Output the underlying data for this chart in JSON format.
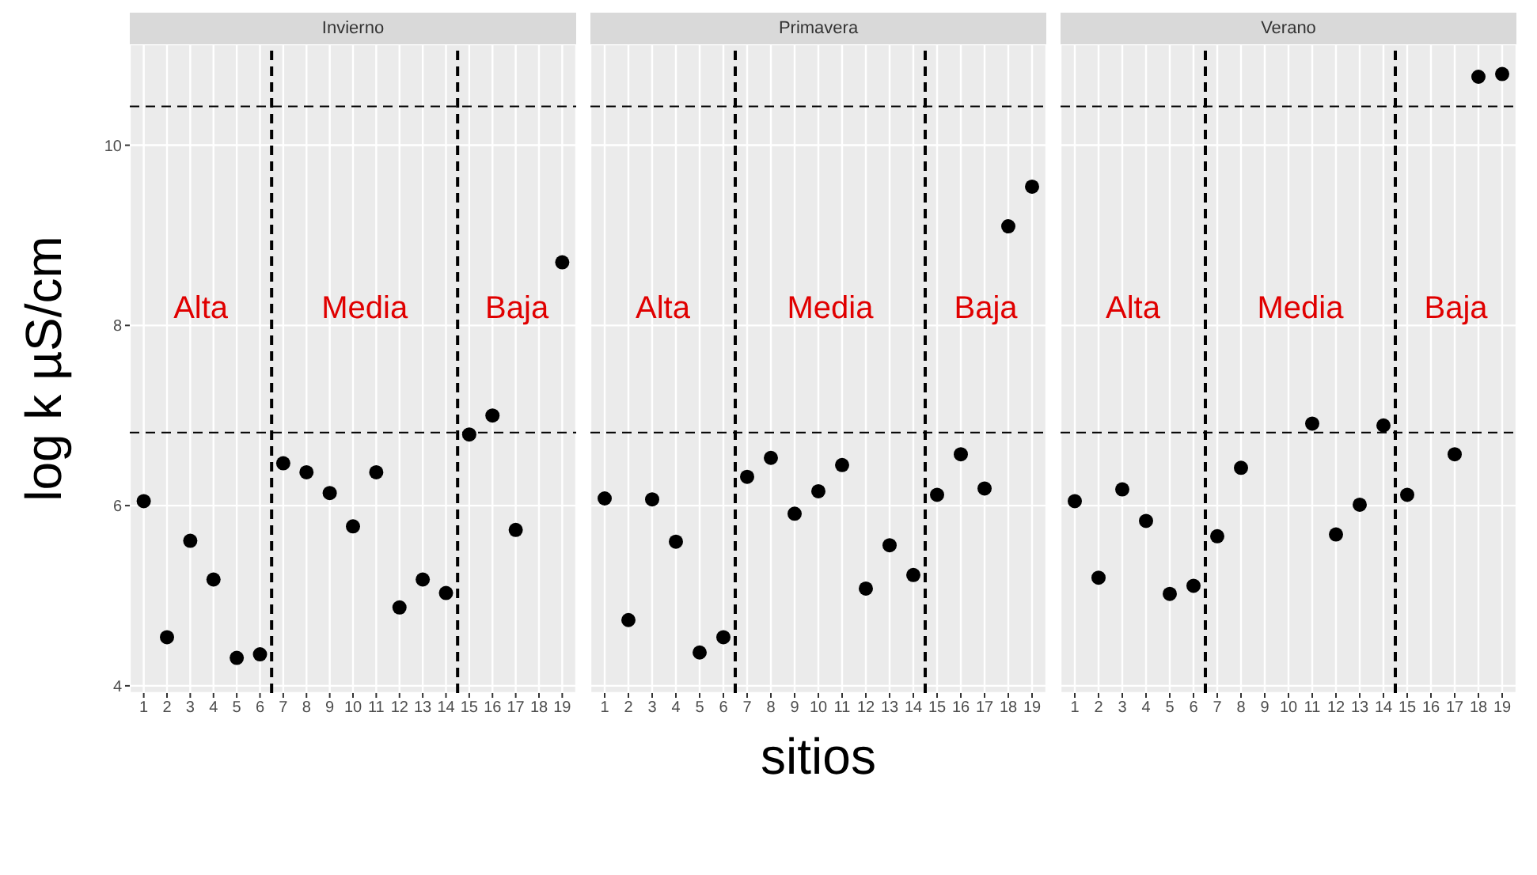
{
  "chart_data": [
    {
      "type": "scatter",
      "title": "Invierno",
      "ylabel": "log k µS/cm",
      "x": [
        1,
        2,
        3,
        4,
        5,
        6,
        7,
        8,
        9,
        10,
        11,
        12,
        13,
        14,
        15,
        16,
        17,
        18,
        19
      ],
      "series": [
        {
          "color": "#000000",
          "values": [
            6.05,
            4.54,
            5.61,
            5.18,
            4.31,
            4.35,
            6.47,
            6.37,
            6.14,
            5.77,
            6.37,
            4.87,
            5.18,
            5.03,
            6.79,
            7.0,
            5.73,
            null,
            8.7
          ]
        }
      ],
      "xlim": [
        0.4,
        19.6
      ],
      "xticks": [
        1,
        2,
        3,
        4,
        5,
        6,
        7,
        8,
        9,
        10,
        11,
        12,
        13,
        14,
        15,
        16,
        17,
        18,
        19
      ],
      "ylim": [
        3.92,
        11.12
      ],
      "yticks": [
        4,
        6,
        8,
        10
      ],
      "ref_lines": [
        {
          "axis": "x",
          "value": 6.5,
          "line_style": "dashed"
        },
        {
          "axis": "x",
          "value": 14.5,
          "line_style": "dashed"
        },
        {
          "axis": "y",
          "value": 10.43,
          "line_style": "dashed"
        },
        {
          "axis": "y",
          "value": 6.81,
          "line_style": "dashed"
        }
      ],
      "annotations": [
        "Alta",
        "Media",
        "Baja"
      ],
      "grid": true,
      "marker": "circle",
      "legend": false
    },
    {
      "type": "scatter",
      "title": "Primavera",
      "xlabel": "sitios",
      "x": [
        1,
        2,
        3,
        4,
        5,
        6,
        7,
        8,
        9,
        10,
        11,
        12,
        13,
        14,
        15,
        16,
        17,
        18,
        19
      ],
      "series": [
        {
          "color": "#000000",
          "values": [
            6.08,
            4.73,
            6.07,
            5.6,
            4.37,
            4.54,
            6.32,
            6.53,
            5.91,
            6.16,
            6.45,
            5.08,
            5.56,
            5.23,
            6.12,
            6.57,
            6.19,
            9.1,
            9.54
          ]
        }
      ],
      "xlim": [
        0.4,
        19.6
      ],
      "xticks": [
        1,
        2,
        3,
        4,
        5,
        6,
        7,
        8,
        9,
        10,
        11,
        12,
        13,
        14,
        15,
        16,
        17,
        18,
        19
      ],
      "ylim": [
        3.92,
        11.12
      ],
      "yticks": [
        4,
        6,
        8,
        10
      ],
      "tick_labels": "x",
      "ref_lines": [
        {
          "axis": "x",
          "value": 6.5,
          "line_style": "dashed"
        },
        {
          "axis": "x",
          "value": 14.5,
          "line_style": "dashed"
        },
        {
          "axis": "y",
          "value": 10.43,
          "line_style": "dashed"
        },
        {
          "axis": "y",
          "value": 6.81,
          "line_style": "dashed"
        }
      ],
      "annotations": [
        "Alta",
        "Media",
        "Baja"
      ],
      "grid": true,
      "marker": "circle",
      "legend": false
    },
    {
      "type": "scatter",
      "title": "Verano",
      "x": [
        1,
        2,
        3,
        4,
        5,
        6,
        7,
        8,
        9,
        10,
        11,
        12,
        13,
        14,
        15,
        16,
        17,
        18,
        19
      ],
      "series": [
        {
          "color": "#000000",
          "values": [
            6.05,
            5.2,
            6.18,
            5.83,
            5.02,
            5.11,
            5.66,
            6.42,
            null,
            null,
            6.91,
            5.68,
            6.01,
            6.89,
            6.12,
            null,
            6.57,
            10.76,
            10.79
          ]
        }
      ],
      "xlim": [
        0.4,
        19.6
      ],
      "xticks": [
        1,
        2,
        3,
        4,
        5,
        6,
        7,
        8,
        9,
        10,
        11,
        12,
        13,
        14,
        15,
        16,
        17,
        18,
        19
      ],
      "ylim": [
        3.92,
        11.12
      ],
      "yticks": [
        4,
        6,
        8,
        10
      ],
      "tick_labels": "x",
      "ref_lines": [
        {
          "axis": "x",
          "value": 6.5,
          "line_style": "dashed"
        },
        {
          "axis": "x",
          "value": 14.5,
          "line_style": "dashed"
        },
        {
          "axis": "y",
          "value": 10.43,
          "line_style": "dashed"
        },
        {
          "axis": "y",
          "value": 6.81,
          "line_style": "dashed"
        }
      ],
      "annotations": [
        "Alta",
        "Media",
        "Baja"
      ],
      "grid": true,
      "marker": "circle",
      "legend": false
    }
  ]
}
